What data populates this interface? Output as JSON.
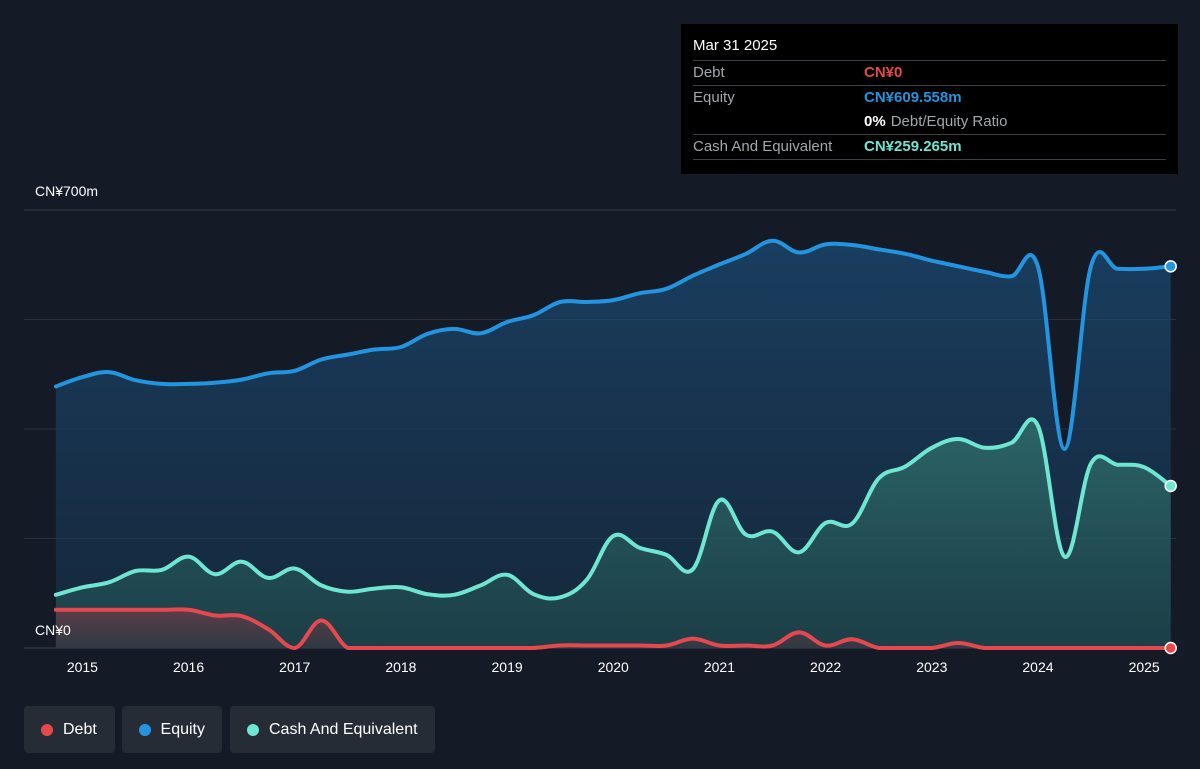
{
  "colors": {
    "debt": "#e5484d",
    "equity": "#2394df",
    "cash": "#6ee6d2",
    "background": "#151b26",
    "grid": "#2c333d"
  },
  "tooltip": {
    "date": "Mar 31 2025",
    "debt_label": "Debt",
    "debt_value": "CN¥0",
    "equity_label": "Equity",
    "equity_value": "CN¥609.558m",
    "ratio_value": "0%",
    "ratio_label": "Debt/Equity Ratio",
    "cash_label": "Cash And Equivalent",
    "cash_value": "CN¥259.265m"
  },
  "y_axis": {
    "top_label": "CN¥700m",
    "bottom_label": "CN¥0"
  },
  "legend": {
    "debt": "Debt",
    "equity": "Equity",
    "cash": "Cash And Equivalent"
  },
  "chart_data": {
    "type": "area",
    "ylim": [
      0,
      700
    ],
    "xlim": [
      2014.45,
      2025.3
    ],
    "x_ticks": [
      2015,
      2016,
      2017,
      2018,
      2019,
      2020,
      2021,
      2022,
      2023,
      2024,
      2025
    ],
    "x_tick_labels": [
      "2015",
      "2016",
      "2017",
      "2018",
      "2019",
      "2020",
      "2021",
      "2022",
      "2023",
      "2024",
      "2025"
    ],
    "series": [
      {
        "name": "Equity",
        "key": "equity",
        "points": [
          [
            2014.75,
            418
          ],
          [
            2015.0,
            433
          ],
          [
            2015.25,
            441
          ],
          [
            2015.5,
            428
          ],
          [
            2015.75,
            422
          ],
          [
            2016.0,
            422
          ],
          [
            2016.25,
            424
          ],
          [
            2016.5,
            429
          ],
          [
            2016.75,
            439
          ],
          [
            2017.0,
            443
          ],
          [
            2017.25,
            461
          ],
          [
            2017.5,
            469
          ],
          [
            2017.75,
            477
          ],
          [
            2018.0,
            481
          ],
          [
            2018.25,
            502
          ],
          [
            2018.5,
            510
          ],
          [
            2018.75,
            503
          ],
          [
            2019.0,
            521
          ],
          [
            2019.25,
            532
          ],
          [
            2019.5,
            553
          ],
          [
            2019.75,
            553
          ],
          [
            2020.0,
            556
          ],
          [
            2020.25,
            567
          ],
          [
            2020.5,
            574
          ],
          [
            2020.75,
            595
          ],
          [
            2021.0,
            613
          ],
          [
            2021.25,
            630
          ],
          [
            2021.5,
            651
          ],
          [
            2021.75,
            632
          ],
          [
            2022.0,
            645
          ],
          [
            2022.25,
            644
          ],
          [
            2022.5,
            637
          ],
          [
            2022.75,
            630
          ],
          [
            2023.0,
            619
          ],
          [
            2023.25,
            610
          ],
          [
            2023.5,
            601
          ],
          [
            2023.75,
            594
          ],
          [
            2024.0,
            609
          ],
          [
            2024.25,
            318
          ],
          [
            2024.5,
            611
          ],
          [
            2024.75,
            606
          ],
          [
            2025.0,
            606
          ],
          [
            2025.25,
            610
          ]
        ]
      },
      {
        "name": "Cash And Equivalent",
        "key": "cash",
        "points": [
          [
            2014.75,
            85
          ],
          [
            2015.0,
            97
          ],
          [
            2015.25,
            105
          ],
          [
            2015.5,
            123
          ],
          [
            2015.75,
            125
          ],
          [
            2016.0,
            146
          ],
          [
            2016.25,
            118
          ],
          [
            2016.5,
            138
          ],
          [
            2016.75,
            112
          ],
          [
            2017.0,
            127
          ],
          [
            2017.25,
            100
          ],
          [
            2017.5,
            90
          ],
          [
            2017.75,
            95
          ],
          [
            2018.0,
            97
          ],
          [
            2018.25,
            86
          ],
          [
            2018.5,
            85
          ],
          [
            2018.75,
            100
          ],
          [
            2019.0,
            117
          ],
          [
            2019.25,
            86
          ],
          [
            2019.5,
            81
          ],
          [
            2019.75,
            109
          ],
          [
            2020.0,
            179
          ],
          [
            2020.25,
            160
          ],
          [
            2020.5,
            149
          ],
          [
            2020.75,
            126
          ],
          [
            2021.0,
            236
          ],
          [
            2021.25,
            181
          ],
          [
            2021.5,
            186
          ],
          [
            2021.75,
            153
          ],
          [
            2022.0,
            200
          ],
          [
            2022.25,
            199
          ],
          [
            2022.5,
            271
          ],
          [
            2022.75,
            290
          ],
          [
            2023.0,
            320
          ],
          [
            2023.25,
            334
          ],
          [
            2023.5,
            320
          ],
          [
            2023.75,
            328
          ],
          [
            2024.0,
            355
          ],
          [
            2024.25,
            146
          ],
          [
            2024.5,
            295
          ],
          [
            2024.75,
            293
          ],
          [
            2025.0,
            289
          ],
          [
            2025.25,
            259
          ]
        ]
      },
      {
        "name": "Debt",
        "key": "debt",
        "points": [
          [
            2014.75,
            61
          ],
          [
            2015.0,
            61
          ],
          [
            2015.25,
            61
          ],
          [
            2015.5,
            61
          ],
          [
            2015.75,
            61
          ],
          [
            2016.0,
            61
          ],
          [
            2016.25,
            52
          ],
          [
            2016.5,
            51
          ],
          [
            2016.75,
            30
          ],
          [
            2017.0,
            0
          ],
          [
            2017.25,
            44
          ],
          [
            2017.5,
            0
          ],
          [
            2017.75,
            0
          ],
          [
            2018.0,
            0
          ],
          [
            2018.25,
            0
          ],
          [
            2018.5,
            0
          ],
          [
            2018.75,
            0
          ],
          [
            2019.0,
            0
          ],
          [
            2019.25,
            0
          ],
          [
            2019.5,
            4
          ],
          [
            2019.75,
            4
          ],
          [
            2020.0,
            4
          ],
          [
            2020.25,
            4
          ],
          [
            2020.5,
            4
          ],
          [
            2020.75,
            15
          ],
          [
            2021.0,
            4
          ],
          [
            2021.25,
            4
          ],
          [
            2021.5,
            4
          ],
          [
            2021.75,
            25
          ],
          [
            2022.0,
            4
          ],
          [
            2022.25,
            14
          ],
          [
            2022.5,
            0
          ],
          [
            2022.75,
            0
          ],
          [
            2023.0,
            0
          ],
          [
            2023.25,
            8
          ],
          [
            2023.5,
            0
          ],
          [
            2023.75,
            0
          ],
          [
            2024.0,
            0
          ],
          [
            2024.25,
            0
          ],
          [
            2024.5,
            0
          ],
          [
            2024.75,
            0
          ],
          [
            2025.0,
            0
          ],
          [
            2025.25,
            0
          ]
        ]
      }
    ]
  }
}
